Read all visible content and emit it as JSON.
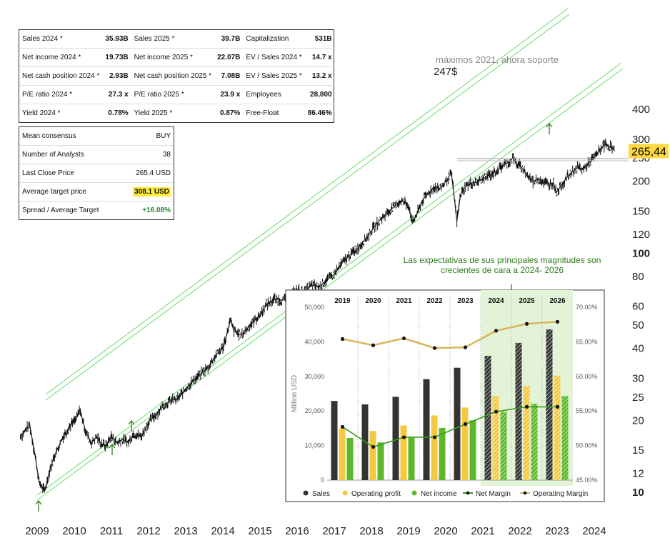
{
  "colors": {
    "channel": "#66dd66",
    "sales": "#333333",
    "operating_profit": "#f5c842",
    "net_income": "#5cb82a",
    "net_margin": "#3a9a1e",
    "operating_margin": "#d9b45a",
    "forecast_bg": "#e3f3d8",
    "price_tag": "#ffd740",
    "annotation_text": "#2e7d1a"
  },
  "price_tag": "265,44",
  "annotations": {
    "ath": "máximos 2021, ahora soporte",
    "support_level": "247$",
    "expectations": [
      "Las expectativas de sus principales magnitudes son",
      "crecientes de cara a 2024- 2026"
    ]
  },
  "icons": [
    "arrow-up-icon",
    "arrow-down-icon"
  ],
  "summary_table": [
    [
      "Sales 2024 *",
      "35.93B",
      "Sales 2025 *",
      "39.7B",
      "Capitalization",
      "531B"
    ],
    [
      "Net income 2024 *",
      "19.73B",
      "Net income 2025 *",
      "22.07B",
      "EV / Sales 2024 *",
      "14.7 x"
    ],
    [
      "Net cash position 2024 *",
      "2.93B",
      "Net cash position 2025 *",
      "7.08B",
      "EV / Sales 2025 *",
      "13.2 x"
    ],
    [
      "P/E ratio 2024 *",
      "27.3 x",
      "P/E ratio 2025 *",
      "23.9 x",
      "Employees",
      "28,800"
    ],
    [
      "Yield 2024 *",
      "0.78%",
      "Yield 2025 *",
      "0.87%",
      "Free-Float",
      "86.46%"
    ]
  ],
  "consensus_table": [
    {
      "label": "Mean consensus",
      "value": "BUY"
    },
    {
      "label": "Number of Analysts",
      "value": "38"
    },
    {
      "label": "Last Close Price",
      "value": "265.4 USD"
    },
    {
      "label": "Average target price",
      "value": "308.1 USD"
    },
    {
      "label": "Spread / Average Target",
      "value": "+16.08%"
    }
  ],
  "chart_data": [
    {
      "type": "line",
      "scale": "log",
      "x_ticks": [
        "2009",
        "2010",
        "2011",
        "2012",
        "2013",
        "2014",
        "2015",
        "2016",
        "2017",
        "2018",
        "2019",
        "2020",
        "2021",
        "2022",
        "2023",
        "2024"
      ],
      "y_ticks": [
        10,
        12,
        15,
        20,
        25,
        30,
        40,
        50,
        60,
        80,
        100,
        120,
        150,
        200,
        250,
        300,
        400
      ],
      "ylim": [
        9.5,
        420
      ],
      "last_price": 265.44,
      "horizontal_level": 247,
      "series": [
        {
          "values": [
            [
              "2008.55",
              17
            ],
            [
              "2008.8",
              19
            ],
            [
              "2008.95",
              14
            ],
            [
              "2009.05",
              11
            ],
            [
              "2009.2",
              10
            ],
            [
              "2009.35",
              12.5
            ],
            [
              "2009.5",
              14.5
            ],
            [
              "2009.7",
              17
            ],
            [
              "2009.9",
              19
            ],
            [
              "2010.05",
              20
            ],
            [
              "2010.15",
              22
            ],
            [
              "2010.3",
              18
            ],
            [
              "2010.45",
              16
            ],
            [
              "2010.6",
              17
            ],
            [
              "2010.7",
              16
            ],
            [
              "2010.85",
              15.5
            ],
            [
              "2011.0",
              17
            ],
            [
              "2011.15",
              16
            ],
            [
              "2011.3",
              16.5
            ],
            [
              "2011.45",
              16
            ],
            [
              "2011.6",
              17.5
            ],
            [
              "2011.8",
              17
            ],
            [
              "2012.0",
              19.5
            ],
            [
              "2012.2",
              21
            ],
            [
              "2012.4",
              23
            ],
            [
              "2012.6",
              24
            ],
            [
              "2012.8",
              24.5
            ],
            [
              "2013.0",
              27
            ],
            [
              "2013.2",
              29
            ],
            [
              "2013.4",
              31
            ],
            [
              "2013.6",
              33
            ],
            [
              "2013.8",
              37
            ],
            [
              "2014.0",
              40
            ],
            [
              "2014.1",
              45
            ],
            [
              "2014.2",
              52
            ],
            [
              "2014.3",
              47
            ],
            [
              "2014.5",
              45
            ],
            [
              "2014.6",
              47
            ],
            [
              "2014.7",
              49
            ],
            [
              "2014.85",
              52
            ],
            [
              "2015.0",
              55
            ],
            [
              "2015.2",
              61
            ],
            [
              "2015.4",
              64
            ],
            [
              "2015.6",
              63
            ],
            [
              "2015.8",
              66
            ],
            [
              "2016.0",
              70
            ],
            [
              "2016.2",
              69
            ],
            [
              "2016.4",
              73
            ],
            [
              "2016.6",
              72
            ],
            [
              "2016.8",
              77
            ],
            [
              "2017.0",
              81
            ],
            [
              "2017.2",
              90
            ],
            [
              "2017.4",
              97
            ],
            [
              "2017.6",
              103
            ],
            [
              "2017.8",
              112
            ],
            [
              "2018.0",
              123
            ],
            [
              "2018.2",
              135
            ],
            [
              "2018.4",
              145
            ],
            [
              "2018.6",
              155
            ],
            [
              "2018.8",
              165
            ],
            [
              "2019.0",
              158
            ],
            [
              "2019.1",
              133
            ],
            [
              "2019.25",
              148
            ],
            [
              "2019.4",
              168
            ],
            [
              "2019.55",
              178
            ],
            [
              "2019.7",
              188
            ],
            [
              "2019.85",
              185
            ],
            [
              "2020.0",
              198
            ],
            [
              "2020.15",
              215
            ],
            [
              "2020.25",
              160
            ],
            [
              "2020.3",
              135
            ],
            [
              "2020.4",
              175
            ],
            [
              "2020.55",
              190
            ],
            [
              "2020.7",
              195
            ],
            [
              "2020.85",
              197
            ],
            [
              "2021.0",
              203
            ],
            [
              "2021.15",
              210
            ],
            [
              "2021.3",
              216
            ],
            [
              "2021.45",
              225
            ],
            [
              "2021.55",
              233
            ],
            [
              "2021.7",
              238
            ],
            [
              "2021.8",
              248
            ],
            [
              "2021.9",
              236
            ],
            [
              "2022.05",
              226
            ],
            [
              "2022.2",
              210
            ],
            [
              "2022.35",
              198
            ],
            [
              "2022.5",
              203
            ],
            [
              "2022.65",
              196
            ],
            [
              "2022.8",
              193
            ],
            [
              "2022.9",
              196
            ],
            [
              "2022.98",
              178
            ],
            [
              "2023.1",
              190
            ],
            [
              "2023.25",
              205
            ],
            [
              "2023.4",
              217
            ],
            [
              "2023.55",
              226
            ],
            [
              "2023.7",
              223
            ],
            [
              "2023.85",
              236
            ],
            [
              "2024.0",
              250
            ],
            [
              "2024.1",
              262
            ],
            [
              "2024.2",
              276
            ],
            [
              "2024.3",
              283
            ],
            [
              "2024.4",
              278
            ],
            [
              "2024.5",
              272
            ],
            [
              "2024.55",
              265.44
            ]
          ]
        }
      ]
    },
    {
      "type": "bar",
      "categories": [
        "2019",
        "2020",
        "2021",
        "2022",
        "2023",
        "2024",
        "2025",
        "2026"
      ],
      "forecast_from": "2024",
      "ylabel": "Million USD",
      "ylim": [
        0,
        50000
      ],
      "y2lim": [
        45,
        70
      ],
      "y_ticks": [
        "0",
        "10,000",
        "20,000",
        "30,000",
        "40,000",
        "50,000"
      ],
      "y2_ticks": [
        "45.00%",
        "50.00%",
        "55.00%",
        "60.00%",
        "65.00%",
        "70.00%"
      ],
      "series": [
        {
          "name": "Sales",
          "values": [
            22900,
            21900,
            24100,
            29200,
            32500,
            35930,
            39700,
            43600
          ]
        },
        {
          "name": "Operating profit",
          "values": [
            15000,
            14200,
            15800,
            18700,
            21000,
            24300,
            27200,
            30200
          ]
        },
        {
          "name": "Net income",
          "values": [
            12200,
            10900,
            12400,
            15100,
            17300,
            19730,
            22070,
            24300
          ]
        },
        {
          "name": "Net Margin",
          "axis": "right",
          "values": [
            52.7,
            49.8,
            51.2,
            51.2,
            53.1,
            54.9,
            55.6,
            55.6
          ]
        },
        {
          "name": "Operating Margin",
          "axis": "right",
          "values": [
            65.4,
            64.5,
            65.5,
            64.1,
            64.2,
            66.6,
            67.6,
            67.9
          ]
        }
      ]
    }
  ]
}
